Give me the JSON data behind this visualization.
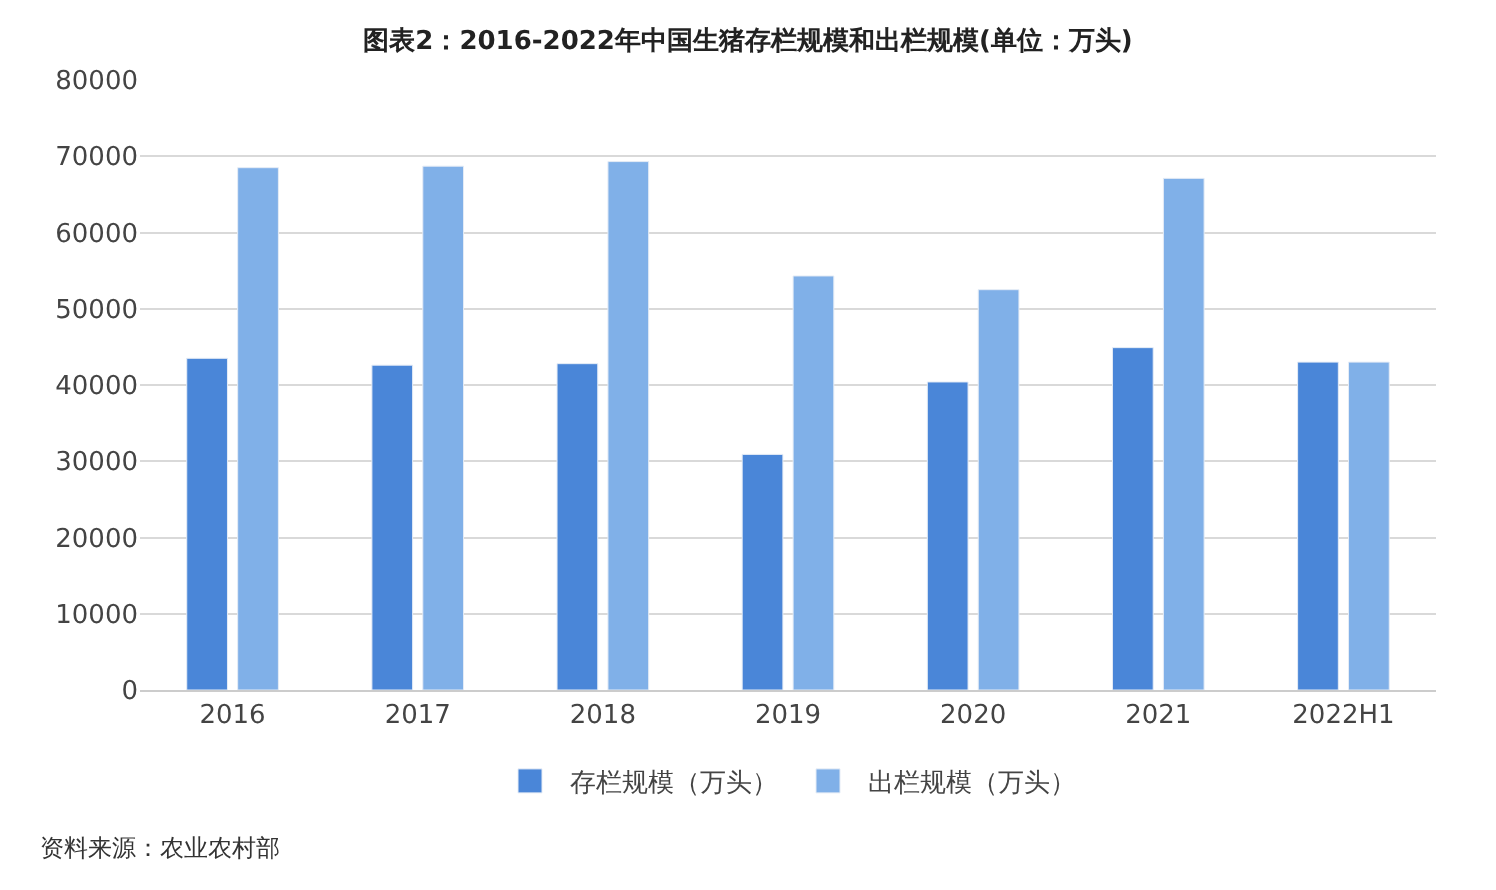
{
  "chart_data": {
    "type": "bar",
    "title": "图表2：2016-2022年中国生猪存栏规模和出栏规模(单位：万头)",
    "categories": [
      "2016",
      "2017",
      "2018",
      "2019",
      "2020",
      "2021",
      "2022H1"
    ],
    "series": [
      {
        "name": "存栏规模（万头）",
        "color": "#4a86d8",
        "values": [
          43500,
          42600,
          42800,
          30900,
          40400,
          44900,
          43000
        ]
      },
      {
        "name": "出栏规模（万头）",
        "color": "#80b0e8",
        "values": [
          68500,
          68700,
          69300,
          54300,
          52500,
          67100,
          43000
        ]
      }
    ],
    "ylim": [
      0,
      80000
    ],
    "yticks": [
      0,
      10000,
      20000,
      30000,
      40000,
      50000,
      60000,
      70000,
      80000
    ],
    "grid": "y",
    "legend": "bottom",
    "annotations": [
      "资料来源：农业农村部"
    ]
  }
}
